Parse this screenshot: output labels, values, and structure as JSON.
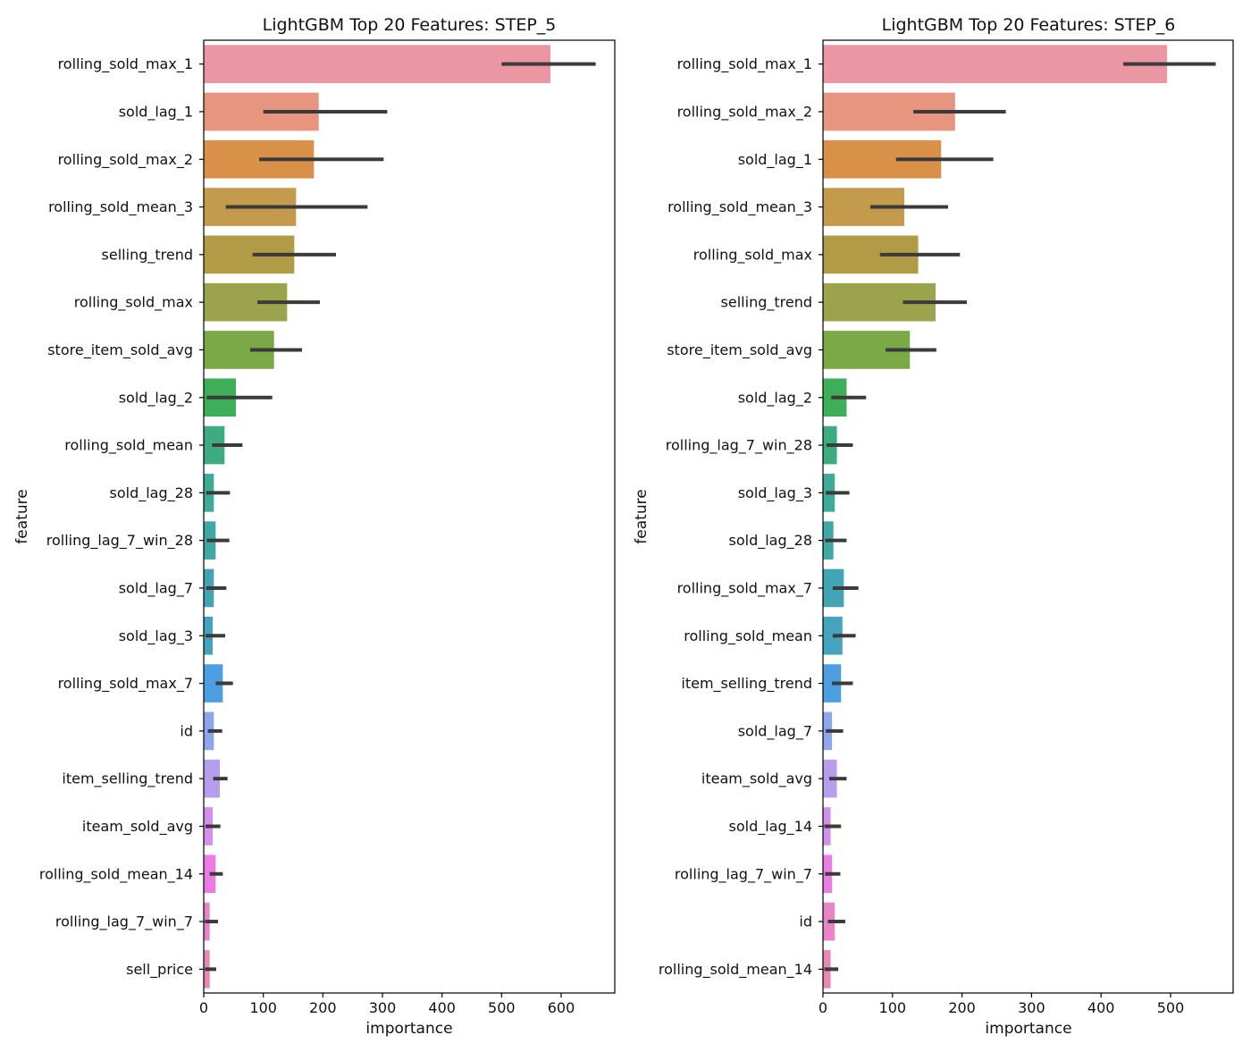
{
  "chart_data": [
    {
      "type": "bar",
      "orientation": "horizontal",
      "title": "LightGBM Top 20 Features: STEP_5",
      "xlabel": "importance",
      "ylabel": "feature",
      "xlim": [
        0,
        690
      ],
      "xticks": [
        0,
        100,
        200,
        300,
        400,
        500,
        600
      ],
      "grid": false,
      "categories": [
        "rolling_sold_max_1",
        "sold_lag_1",
        "rolling_sold_max_2",
        "rolling_sold_mean_3",
        "selling_trend",
        "rolling_sold_max",
        "store_item_sold_avg",
        "sold_lag_2",
        "rolling_sold_mean",
        "sold_lag_28",
        "rolling_lag_7_win_28",
        "sold_lag_7",
        "sold_lag_3",
        "rolling_sold_max_7",
        "id",
        "item_selling_trend",
        "iteam_sold_avg",
        "rolling_sold_mean_14",
        "rolling_lag_7_win_7",
        "sell_price"
      ],
      "values": [
        582,
        193,
        185,
        155,
        152,
        140,
        118,
        54,
        35,
        17,
        20,
        17,
        15,
        32,
        17,
        27,
        15,
        20,
        10,
        10
      ],
      "error_low": [
        500,
        100,
        93,
        37,
        82,
        90,
        78,
        5,
        14,
        4,
        5,
        4,
        3,
        20,
        7,
        16,
        3,
        10,
        2,
        2
      ],
      "error_high": [
        658,
        308,
        302,
        275,
        222,
        195,
        165,
        115,
        65,
        44,
        43,
        38,
        36,
        49,
        31,
        40,
        28,
        32,
        24,
        21
      ],
      "colors": [
        "#ea96a3",
        "#e8957f",
        "#d99048",
        "#c49a4c",
        "#b19b47",
        "#9ca34d",
        "#7aa946",
        "#3fae59",
        "#3eac82",
        "#3faa98",
        "#41a8a8",
        "#43a5b3",
        "#45a3bd",
        "#4c9fe1",
        "#8da6ec",
        "#b59fec",
        "#d58fec",
        "#ea7ce3",
        "#e885c8",
        "#e988b4"
      ]
    },
    {
      "type": "bar",
      "orientation": "horizontal",
      "title": "LightGBM Top 20 Features: STEP_6",
      "xlabel": "importance",
      "ylabel": "feature",
      "xlim": [
        0,
        590
      ],
      "xticks": [
        0,
        100,
        200,
        300,
        400,
        500
      ],
      "grid": false,
      "categories": [
        "rolling_sold_max_1",
        "rolling_sold_max_2",
        "sold_lag_1",
        "rolling_sold_mean_3",
        "rolling_sold_max",
        "selling_trend",
        "store_item_sold_avg",
        "sold_lag_2",
        "rolling_lag_7_win_28",
        "sold_lag_3",
        "sold_lag_28",
        "rolling_sold_max_7",
        "rolling_sold_mean",
        "item_selling_trend",
        "sold_lag_7",
        "iteam_sold_avg",
        "sold_lag_14",
        "rolling_lag_7_win_7",
        "id",
        "rolling_sold_mean_14"
      ],
      "values": [
        495,
        190,
        170,
        117,
        137,
        162,
        125,
        34,
        20,
        17,
        15,
        30,
        28,
        26,
        13,
        20,
        11,
        13,
        17,
        11
      ],
      "error_low": [
        432,
        130,
        105,
        68,
        82,
        115,
        90,
        12,
        5,
        4,
        3,
        14,
        14,
        13,
        4,
        9,
        2,
        3,
        7,
        2
      ],
      "error_high": [
        565,
        263,
        245,
        180,
        197,
        207,
        163,
        62,
        43,
        38,
        34,
        51,
        47,
        43,
        29,
        34,
        26,
        25,
        32,
        22
      ],
      "colors": [
        "#ea96a3",
        "#e8957f",
        "#d99048",
        "#c49a4c",
        "#b19b47",
        "#9ca34d",
        "#7aa946",
        "#3fae59",
        "#3eac82",
        "#3faa98",
        "#41a8a8",
        "#43a5b3",
        "#45a3bd",
        "#4c9fe1",
        "#8da6ec",
        "#b59fec",
        "#d58fec",
        "#ea7ce3",
        "#e885c8",
        "#e988b4"
      ]
    }
  ]
}
